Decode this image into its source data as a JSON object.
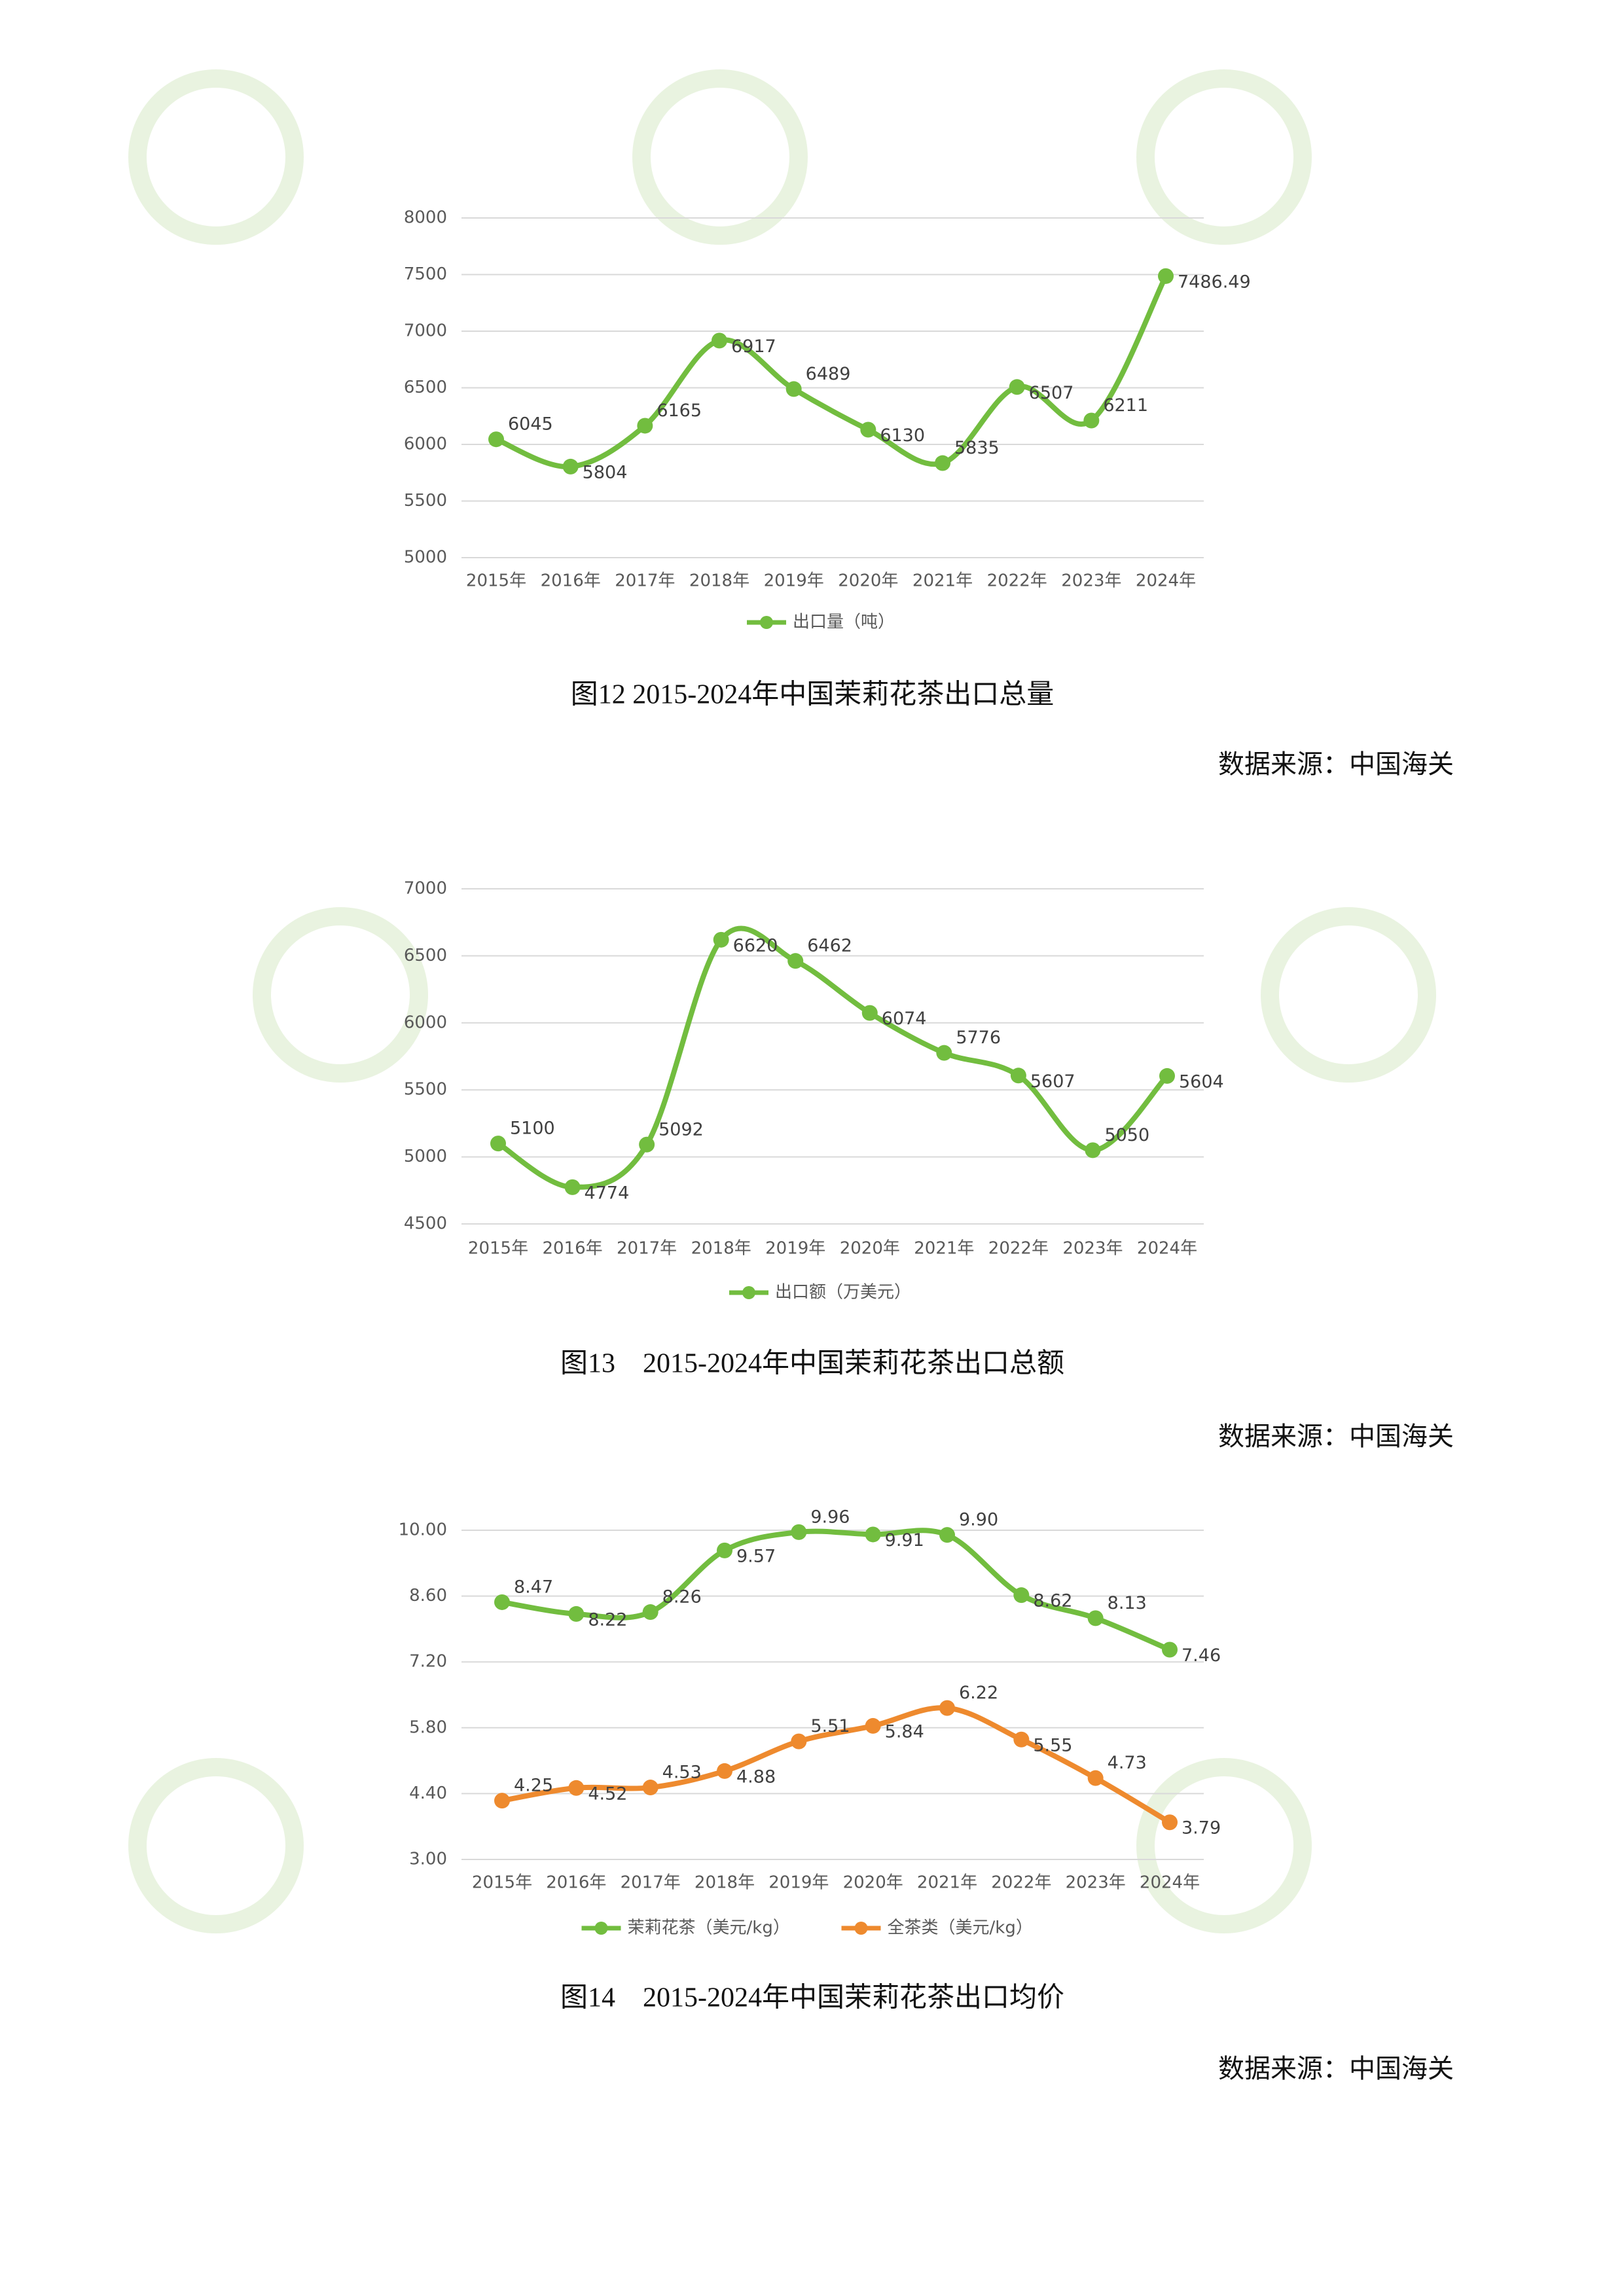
{
  "chart_data": [
    {
      "type": "line",
      "categories": [
        "2015年",
        "2016年",
        "2017年",
        "2018年",
        "2019年",
        "2020年",
        "2021年",
        "2022年",
        "2023年",
        "2024年"
      ],
      "series": [
        {
          "name": "出口量（吨）",
          "color": "#72bd3f",
          "values": [
            6045,
            5804,
            6165,
            6917,
            6489,
            6130,
            5835,
            6507,
            6211,
            7486.49
          ]
        }
      ],
      "ylim": [
        5000,
        8000
      ],
      "yticks": [
        5000,
        5500,
        6000,
        6500,
        7000,
        7500,
        8000
      ],
      "grid": true,
      "legend": "bottom",
      "caption": "图12 2015-2024年中国茉莉花茶出口总量",
      "source": "数据来源：中国海关"
    },
    {
      "type": "line",
      "categories": [
        "2015年",
        "2016年",
        "2017年",
        "2018年",
        "2019年",
        "2020年",
        "2021年",
        "2022年",
        "2023年",
        "2024年"
      ],
      "series": [
        {
          "name": "出口额（万美元）",
          "color": "#72bd3f",
          "values": [
            5100,
            4774,
            5092,
            6620,
            6462,
            6074,
            5776,
            5607,
            5050,
            5604
          ]
        }
      ],
      "ylim": [
        4500,
        7000
      ],
      "yticks": [
        4500,
        5000,
        5500,
        6000,
        6500,
        7000
      ],
      "grid": true,
      "legend": "bottom",
      "caption": "图13　2015-2024年中国茉莉花茶出口总额",
      "source": "数据来源：中国海关"
    },
    {
      "type": "line",
      "categories": [
        "2015年",
        "2016年",
        "2017年",
        "2018年",
        "2019年",
        "2020年",
        "2021年",
        "2022年",
        "2023年",
        "2024年"
      ],
      "series": [
        {
          "name": "茉莉花茶（美元/kg）",
          "color": "#72bd3f",
          "values": [
            8.47,
            8.22,
            8.26,
            9.57,
            9.96,
            9.91,
            9.9,
            8.62,
            8.13,
            7.46
          ],
          "value_labels": [
            "8.47",
            "8.22",
            "8.26",
            "9.57",
            "9.96",
            "9.91",
            "9.90",
            "8.62",
            "8.13",
            "7.46"
          ]
        },
        {
          "name": "全茶类（美元/kg）",
          "color": "#ee8a2e",
          "values": [
            4.25,
            4.52,
            4.53,
            4.88,
            5.51,
            5.84,
            6.22,
            5.55,
            4.73,
            3.79
          ]
        }
      ],
      "ylim": [
        3,
        10
      ],
      "yticks": [
        {
          "value": 3,
          "label": "3.00"
        },
        {
          "value": 4.4,
          "label": "4.40"
        },
        {
          "value": 5.8,
          "label": "5.80"
        },
        {
          "value": 7.2,
          "label": "7.20"
        },
        {
          "value": 8.6,
          "label": "8.60"
        },
        {
          "value": 10,
          "label": "10.00"
        }
      ],
      "grid": true,
      "legend": "bottom",
      "caption": "图14　2015-2024年中国茉莉花茶出口均价",
      "source": "数据来源：中国海关"
    }
  ]
}
